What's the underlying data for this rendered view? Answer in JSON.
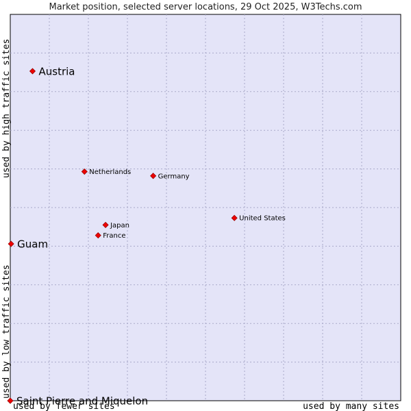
{
  "chart_data": {
    "type": "scatter",
    "title": "Market position, selected server locations, 29 Oct 2025, W3Techs.com",
    "xlabel_left": "used by fewer sites",
    "xlabel_right": "used by many sites",
    "ylabel_bottom": "used by low traffic sites",
    "ylabel_top": "used by high traffic sites",
    "xlim": [
      0,
      100
    ],
    "ylim": [
      0,
      100
    ],
    "grid": true,
    "colors": {
      "plot_background": "#e4e4f8",
      "border": "#000000",
      "marker": "#ee0000",
      "marker_edge": "#990000"
    },
    "points": [
      {
        "name": "Austria",
        "x": 5.7,
        "y": 85.3,
        "label_size": "large"
      },
      {
        "name": "Netherlands",
        "x": 19.0,
        "y": 59.3,
        "label_size": "small"
      },
      {
        "name": "Germany",
        "x": 36.6,
        "y": 58.2,
        "label_size": "small"
      },
      {
        "name": "United States",
        "x": 57.4,
        "y": 47.3,
        "label_size": "small"
      },
      {
        "name": "Japan",
        "x": 24.4,
        "y": 45.5,
        "label_size": "small"
      },
      {
        "name": "France",
        "x": 22.5,
        "y": 42.8,
        "label_size": "small"
      },
      {
        "name": "Guam",
        "x": 0.2,
        "y": 40.6,
        "label_size": "large"
      },
      {
        "name": "Saint Pierre and Miquelon",
        "x": 0.0,
        "y": 0.0,
        "label_size": "large"
      }
    ]
  }
}
